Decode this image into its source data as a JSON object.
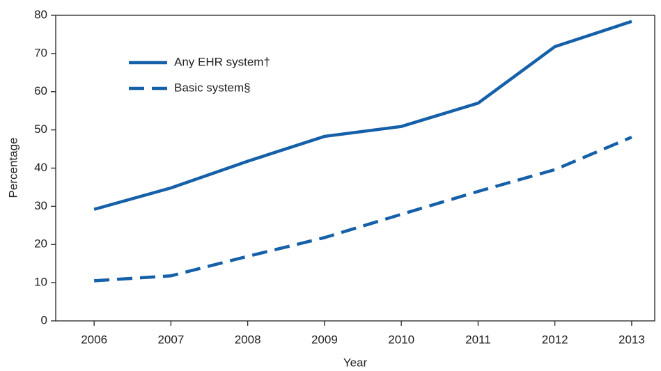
{
  "chart_data": {
    "type": "line",
    "x_label": "Year",
    "y_label": "Percentage",
    "x": [
      2006,
      2007,
      2008,
      2009,
      2010,
      2011,
      2012,
      2013
    ],
    "xlim": [
      2005.5,
      2013.3
    ],
    "xticks": [
      2006,
      2007,
      2008,
      2009,
      2010,
      2011,
      2012,
      2013
    ],
    "ylim": [
      0,
      80
    ],
    "yticks": [
      0,
      10,
      20,
      30,
      40,
      50,
      60,
      70,
      80
    ],
    "legend": "upper left",
    "series": [
      {
        "name": "Any EHR system†",
        "color": "#1560a8",
        "linestyle": "solid",
        "values": [
          29.2,
          34.8,
          41.8,
          48.3,
          50.9,
          57.0,
          71.8,
          78.4
        ]
      },
      {
        "name": "Basic system§",
        "color": "#1560a8",
        "linestyle": "dashed",
        "values": [
          10.5,
          11.8,
          16.9,
          21.8,
          27.9,
          33.9,
          39.6,
          48.1
        ]
      }
    ]
  }
}
